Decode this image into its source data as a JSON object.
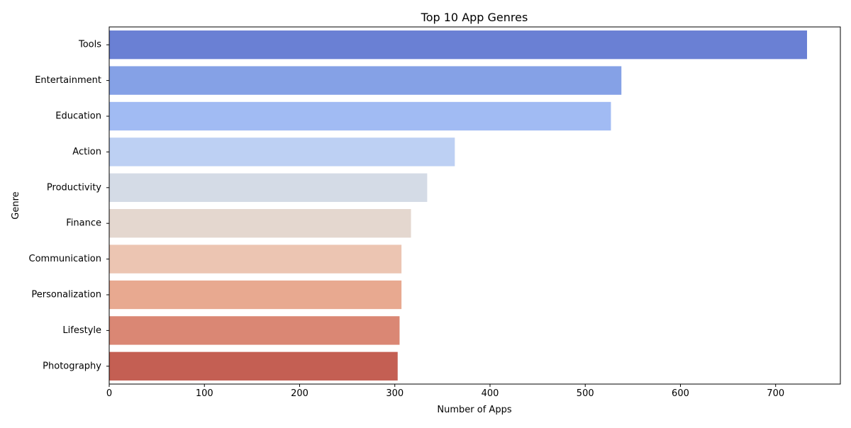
{
  "chart_data": {
    "type": "bar",
    "orientation": "horizontal",
    "title": "Top 10 App Genres",
    "xlabel": "Number of Apps",
    "ylabel": "Genre",
    "categories": [
      "Tools",
      "Entertainment",
      "Education",
      "Action",
      "Productivity",
      "Finance",
      "Communication",
      "Personalization",
      "Lifestyle",
      "Photography"
    ],
    "values": [
      733,
      538,
      527,
      363,
      334,
      317,
      307,
      307,
      305,
      303
    ],
    "colors": [
      "#6a80d4",
      "#85a1e6",
      "#a1bbf3",
      "#bdd0f3",
      "#d4dbe6",
      "#e4d7cf",
      "#ecc5b2",
      "#e8a990",
      "#da8774",
      "#c45f53"
    ],
    "xlim": [
      0,
      768
    ],
    "xticks": [
      0,
      100,
      200,
      300,
      400,
      500,
      600,
      700
    ],
    "grid": false
  }
}
